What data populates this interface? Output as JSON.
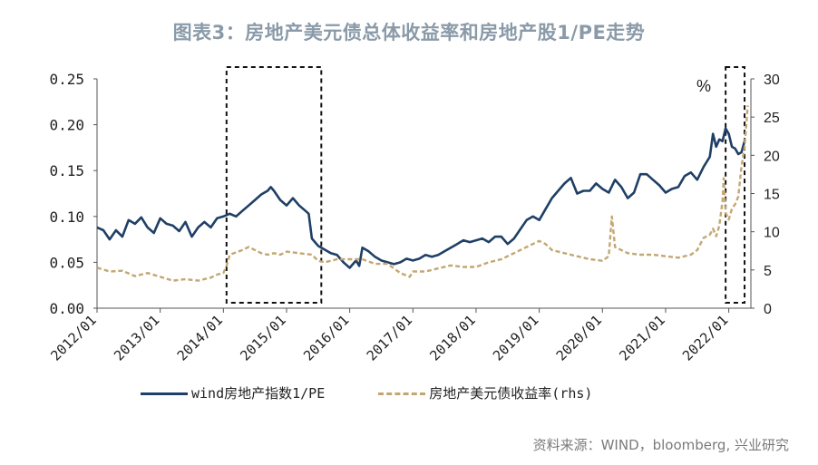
{
  "title": "图表3：房地产美元债总体收益率和房地产股1/PE走势",
  "source": "资料来源：WIND，bloomberg, 兴业研究",
  "chart_data": {
    "type": "line",
    "title": "图表3：房地产美元债总体收益率和房地产股1/PE走势",
    "y_left": {
      "ticks": [
        "0.00",
        "0.05",
        "0.10",
        "0.15",
        "0.20",
        "0.25"
      ],
      "range": [
        0,
        0.25
      ]
    },
    "y_right": {
      "unit_label": "%",
      "ticks": [
        "0",
        "5",
        "10",
        "15",
        "20",
        "25",
        "30"
      ],
      "range": [
        0,
        30
      ]
    },
    "x": {
      "range": [
        2012.0,
        2022.35
      ],
      "ticks": [
        "2012/01",
        "2013/01",
        "2014/01",
        "2015/01",
        "2016/01",
        "2017/01",
        "2018/01",
        "2019/01",
        "2020/01",
        "2021/01",
        "2022/01"
      ]
    },
    "highlight_boxes": [
      {
        "x_start": 2014.05,
        "x_end": 2015.55
      },
      {
        "x_start": 2021.95,
        "x_end": 2022.25
      }
    ],
    "series": [
      {
        "name": "wind房地产指数1/PE",
        "axis": "left",
        "color": "#1f3f66",
        "style": "solid",
        "points": [
          [
            2012.0,
            0.088
          ],
          [
            2012.1,
            0.085
          ],
          [
            2012.2,
            0.075
          ],
          [
            2012.3,
            0.085
          ],
          [
            2012.4,
            0.078
          ],
          [
            2012.5,
            0.096
          ],
          [
            2012.6,
            0.092
          ],
          [
            2012.7,
            0.099
          ],
          [
            2012.8,
            0.088
          ],
          [
            2012.9,
            0.082
          ],
          [
            2013.0,
            0.098
          ],
          [
            2013.1,
            0.092
          ],
          [
            2013.2,
            0.09
          ],
          [
            2013.3,
            0.084
          ],
          [
            2013.4,
            0.094
          ],
          [
            2013.5,
            0.078
          ],
          [
            2013.6,
            0.088
          ],
          [
            2013.7,
            0.094
          ],
          [
            2013.8,
            0.088
          ],
          [
            2013.9,
            0.098
          ],
          [
            2014.0,
            0.1
          ],
          [
            2014.1,
            0.103
          ],
          [
            2014.2,
            0.1
          ],
          [
            2014.3,
            0.106
          ],
          [
            2014.4,
            0.112
          ],
          [
            2014.5,
            0.118
          ],
          [
            2014.6,
            0.124
          ],
          [
            2014.7,
            0.128
          ],
          [
            2014.75,
            0.132
          ],
          [
            2014.8,
            0.128
          ],
          [
            2014.9,
            0.118
          ],
          [
            2015.0,
            0.112
          ],
          [
            2015.1,
            0.12
          ],
          [
            2015.2,
            0.112
          ],
          [
            2015.3,
            0.106
          ],
          [
            2015.35,
            0.103
          ],
          [
            2015.4,
            0.076
          ],
          [
            2015.5,
            0.068
          ],
          [
            2015.6,
            0.064
          ],
          [
            2015.7,
            0.06
          ],
          [
            2015.8,
            0.058
          ],
          [
            2015.9,
            0.05
          ],
          [
            2016.0,
            0.044
          ],
          [
            2016.1,
            0.052
          ],
          [
            2016.15,
            0.046
          ],
          [
            2016.2,
            0.066
          ],
          [
            2016.3,
            0.062
          ],
          [
            2016.4,
            0.056
          ],
          [
            2016.5,
            0.052
          ],
          [
            2016.6,
            0.05
          ],
          [
            2016.7,
            0.048
          ],
          [
            2016.8,
            0.05
          ],
          [
            2016.9,
            0.054
          ],
          [
            2017.0,
            0.052
          ],
          [
            2017.1,
            0.054
          ],
          [
            2017.2,
            0.058
          ],
          [
            2017.3,
            0.056
          ],
          [
            2017.4,
            0.058
          ],
          [
            2017.5,
            0.062
          ],
          [
            2017.6,
            0.066
          ],
          [
            2017.7,
            0.07
          ],
          [
            2017.8,
            0.074
          ],
          [
            2017.9,
            0.072
          ],
          [
            2018.0,
            0.074
          ],
          [
            2018.1,
            0.076
          ],
          [
            2018.2,
            0.072
          ],
          [
            2018.3,
            0.078
          ],
          [
            2018.4,
            0.078
          ],
          [
            2018.5,
            0.07
          ],
          [
            2018.6,
            0.076
          ],
          [
            2018.7,
            0.086
          ],
          [
            2018.8,
            0.096
          ],
          [
            2018.9,
            0.1
          ],
          [
            2019.0,
            0.096
          ],
          [
            2019.1,
            0.108
          ],
          [
            2019.2,
            0.12
          ],
          [
            2019.3,
            0.128
          ],
          [
            2019.4,
            0.136
          ],
          [
            2019.5,
            0.142
          ],
          [
            2019.6,
            0.125
          ],
          [
            2019.7,
            0.128
          ],
          [
            2019.8,
            0.128
          ],
          [
            2019.9,
            0.136
          ],
          [
            2020.0,
            0.13
          ],
          [
            2020.1,
            0.126
          ],
          [
            2020.2,
            0.14
          ],
          [
            2020.3,
            0.132
          ],
          [
            2020.4,
            0.12
          ],
          [
            2020.5,
            0.126
          ],
          [
            2020.6,
            0.146
          ],
          [
            2020.7,
            0.146
          ],
          [
            2020.8,
            0.14
          ],
          [
            2020.9,
            0.134
          ],
          [
            2021.0,
            0.126
          ],
          [
            2021.1,
            0.13
          ],
          [
            2021.2,
            0.132
          ],
          [
            2021.3,
            0.144
          ],
          [
            2021.4,
            0.148
          ],
          [
            2021.5,
            0.14
          ],
          [
            2021.6,
            0.154
          ],
          [
            2021.7,
            0.165
          ],
          [
            2021.75,
            0.19
          ],
          [
            2021.8,
            0.176
          ],
          [
            2021.85,
            0.184
          ],
          [
            2021.9,
            0.182
          ],
          [
            2021.95,
            0.196
          ],
          [
            2022.0,
            0.19
          ],
          [
            2022.05,
            0.176
          ],
          [
            2022.1,
            0.174
          ],
          [
            2022.15,
            0.168
          ],
          [
            2022.2,
            0.17
          ],
          [
            2022.25,
            0.182
          ]
        ]
      },
      {
        "name": "房地产美元债收益率(rhs)",
        "axis": "right",
        "color": "#c3a773",
        "style": "dashed",
        "points": [
          [
            2012.0,
            5.3
          ],
          [
            2012.2,
            4.8
          ],
          [
            2012.4,
            4.9
          ],
          [
            2012.6,
            4.2
          ],
          [
            2012.8,
            4.6
          ],
          [
            2013.0,
            4.1
          ],
          [
            2013.2,
            3.6
          ],
          [
            2013.4,
            3.8
          ],
          [
            2013.6,
            3.6
          ],
          [
            2013.8,
            4.0
          ],
          [
            2013.9,
            4.4
          ],
          [
            2014.0,
            4.6
          ],
          [
            2014.05,
            5.5
          ],
          [
            2014.1,
            7.0
          ],
          [
            2014.2,
            7.3
          ],
          [
            2014.3,
            7.6
          ],
          [
            2014.4,
            8.0
          ],
          [
            2014.5,
            7.6
          ],
          [
            2014.6,
            7.2
          ],
          [
            2014.7,
            7.0
          ],
          [
            2014.8,
            7.2
          ],
          [
            2014.9,
            7.0
          ],
          [
            2015.0,
            7.4
          ],
          [
            2015.2,
            7.2
          ],
          [
            2015.4,
            7.0
          ],
          [
            2015.5,
            6.2
          ],
          [
            2015.6,
            6.0
          ],
          [
            2015.8,
            6.4
          ],
          [
            2016.0,
            6.4
          ],
          [
            2016.2,
            6.4
          ],
          [
            2016.4,
            5.8
          ],
          [
            2016.6,
            5.8
          ],
          [
            2016.8,
            4.6
          ],
          [
            2016.95,
            4.1
          ],
          [
            2017.0,
            4.8
          ],
          [
            2017.2,
            4.8
          ],
          [
            2017.4,
            5.2
          ],
          [
            2017.6,
            5.6
          ],
          [
            2017.8,
            5.4
          ],
          [
            2018.0,
            5.4
          ],
          [
            2018.2,
            6.0
          ],
          [
            2018.4,
            6.4
          ],
          [
            2018.6,
            7.2
          ],
          [
            2018.8,
            8.0
          ],
          [
            2019.0,
            8.8
          ],
          [
            2019.1,
            8.4
          ],
          [
            2019.2,
            7.6
          ],
          [
            2019.4,
            7.2
          ],
          [
            2019.6,
            6.8
          ],
          [
            2019.8,
            6.4
          ],
          [
            2020.0,
            6.2
          ],
          [
            2020.1,
            6.8
          ],
          [
            2020.15,
            12.0
          ],
          [
            2020.2,
            8.0
          ],
          [
            2020.3,
            7.6
          ],
          [
            2020.4,
            7.2
          ],
          [
            2020.6,
            7.0
          ],
          [
            2020.8,
            7.0
          ],
          [
            2021.0,
            6.8
          ],
          [
            2021.2,
            6.6
          ],
          [
            2021.4,
            7.0
          ],
          [
            2021.5,
            7.6
          ],
          [
            2021.6,
            9.2
          ],
          [
            2021.7,
            9.6
          ],
          [
            2021.75,
            10.4
          ],
          [
            2021.8,
            9.4
          ],
          [
            2021.85,
            10.8
          ],
          [
            2021.9,
            14.0
          ],
          [
            2021.92,
            17.0
          ],
          [
            2021.95,
            12.5
          ],
          [
            2022.0,
            11.6
          ],
          [
            2022.05,
            13.0
          ],
          [
            2022.1,
            13.6
          ],
          [
            2022.15,
            14.6
          ],
          [
            2022.2,
            18.5
          ],
          [
            2022.25,
            21.0
          ],
          [
            2022.3,
            26.5
          ]
        ]
      }
    ]
  }
}
